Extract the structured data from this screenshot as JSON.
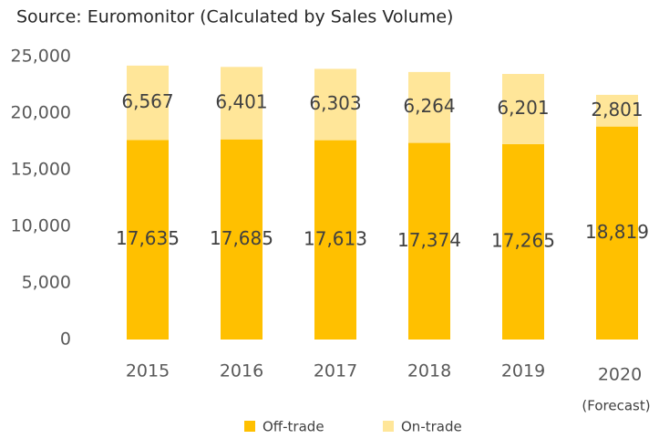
{
  "chart_data": {
    "type": "stacked-bar",
    "title": "Source:  Euromonitor (Calculated by Sales Volume)",
    "categories": [
      "2015",
      "2016",
      "2017",
      "2018",
      "2019",
      "2020"
    ],
    "annotation": "(Forecast)",
    "series": [
      {
        "name": "Off-trade",
        "color": "#ffc000",
        "values": [
          17635,
          17685,
          17613,
          17374,
          17265,
          18819
        ],
        "value_labels": [
          "17,635",
          "17,685",
          "17,613",
          "17,374",
          "17,265",
          "18,819"
        ]
      },
      {
        "name": "On-trade",
        "color": "#ffe699",
        "values": [
          6567,
          6401,
          6303,
          6264,
          6201,
          2801
        ],
        "value_labels": [
          "6,567",
          "6,401",
          "6,303",
          "6,264",
          "6,201",
          "2,801"
        ]
      }
    ],
    "ylim": [
      0,
      25000
    ],
    "yticks": [
      0,
      {
        "value": 5000,
        "label": "5,000"
      },
      {
        "value": 10000,
        "label": "10,000"
      },
      {
        "value": 15000,
        "label": "15,000"
      },
      {
        "value": 20000,
        "label": "20,000"
      },
      {
        "value": 25000,
        "label": "25,000"
      }
    ],
    "grid": false
  }
}
